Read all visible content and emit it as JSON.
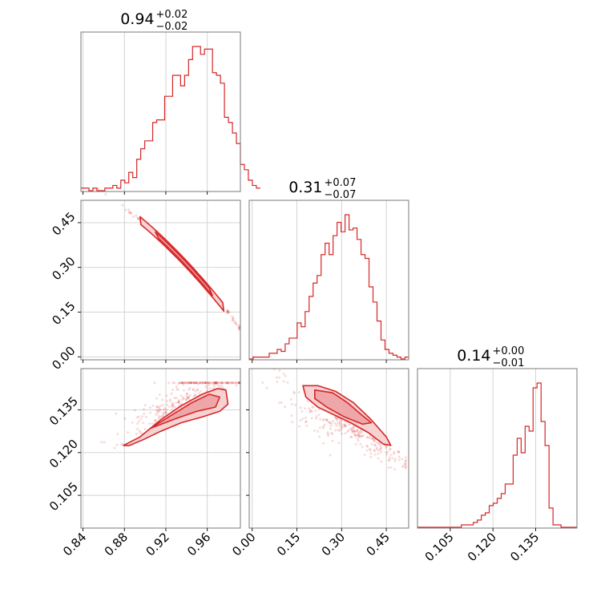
{
  "colors": {
    "series": "#d62728",
    "fill_light": "#f6d2d3",
    "fill_mid": "#eea6a8",
    "grid": "#cfcfcf",
    "frame": "#7a7a7a"
  },
  "chart_data": {
    "type": "corner",
    "parameters": [
      {
        "title_main": "0.94",
        "title_plus": "+0.02",
        "title_minus": "−0.02",
        "median": 0.94,
        "err_plus": 0.02,
        "err_minus": 0.02,
        "range": [
          0.838,
          0.992
        ],
        "ticks": [
          0.84,
          0.88,
          0.92,
          0.96
        ],
        "tick_labels": [
          "0.84",
          "0.88",
          "0.92",
          "0.96"
        ]
      },
      {
        "title_main": "0.31",
        "title_plus": "+0.07",
        "title_minus": "−0.07",
        "median": 0.31,
        "err_plus": 0.07,
        "err_minus": 0.07,
        "range": [
          -0.01,
          0.525
        ],
        "ticks": [
          0.0,
          0.15,
          0.3,
          0.45
        ],
        "tick_labels": [
          "0.00",
          "0.15",
          "0.30",
          "0.45"
        ]
      },
      {
        "title_main": "0.14",
        "title_plus": "+0.00",
        "title_minus": "−0.01",
        "median": 0.14,
        "err_plus": 0.0,
        "err_minus": 0.01,
        "range": [
          0.0935,
          0.1495
        ],
        "ticks": [
          0.105,
          0.12,
          0.135
        ],
        "tick_labels": [
          "0.105",
          "0.120",
          "0.135"
        ]
      }
    ],
    "histograms": [
      {
        "param": 0,
        "edges_start": 0.838,
        "edges_step": 0.00385,
        "counts": [
          1,
          1,
          0,
          1,
          0,
          0,
          1,
          1,
          2,
          1,
          4,
          3,
          7,
          5,
          12,
          16,
          19,
          19,
          26,
          27,
          27,
          36,
          36,
          44,
          44,
          40,
          44,
          50,
          55,
          55,
          52,
          54,
          54,
          45,
          44,
          41,
          28,
          26,
          22,
          18,
          10,
          8,
          4,
          2,
          1
        ]
      },
      {
        "param": 1,
        "edges_start": -0.01,
        "edges_step": 0.0134,
        "counts": [
          0,
          1,
          1,
          1,
          1,
          3,
          3,
          5,
          4,
          8,
          11,
          11,
          19,
          17,
          25,
          33,
          40,
          44,
          55,
          61,
          55,
          65,
          72,
          67,
          76,
          68,
          69,
          63,
          55,
          53,
          38,
          30,
          20,
          10,
          5,
          3,
          2,
          1,
          0,
          1
        ]
      },
      {
        "param": 2,
        "edges_start": 0.0935,
        "edges_step": 0.0014,
        "counts": [
          0,
          0,
          0,
          0,
          0,
          0,
          0,
          0,
          0,
          0,
          0,
          1,
          1,
          1,
          2,
          3,
          5,
          6,
          9,
          10,
          12,
          14,
          18,
          18,
          30,
          37,
          31,
          42,
          40,
          58,
          60,
          44,
          34,
          8,
          1,
          1,
          0,
          0,
          0,
          0
        ]
      }
    ],
    "pairs": [
      {
        "x_param": 0,
        "y_param": 1,
        "note": "narrow curved ridge"
      },
      {
        "x_param": 0,
        "y_param": 2,
        "note": "skewed band rising to upper right"
      },
      {
        "x_param": 1,
        "y_param": 2,
        "note": "skewed band falling to lower right"
      }
    ]
  }
}
